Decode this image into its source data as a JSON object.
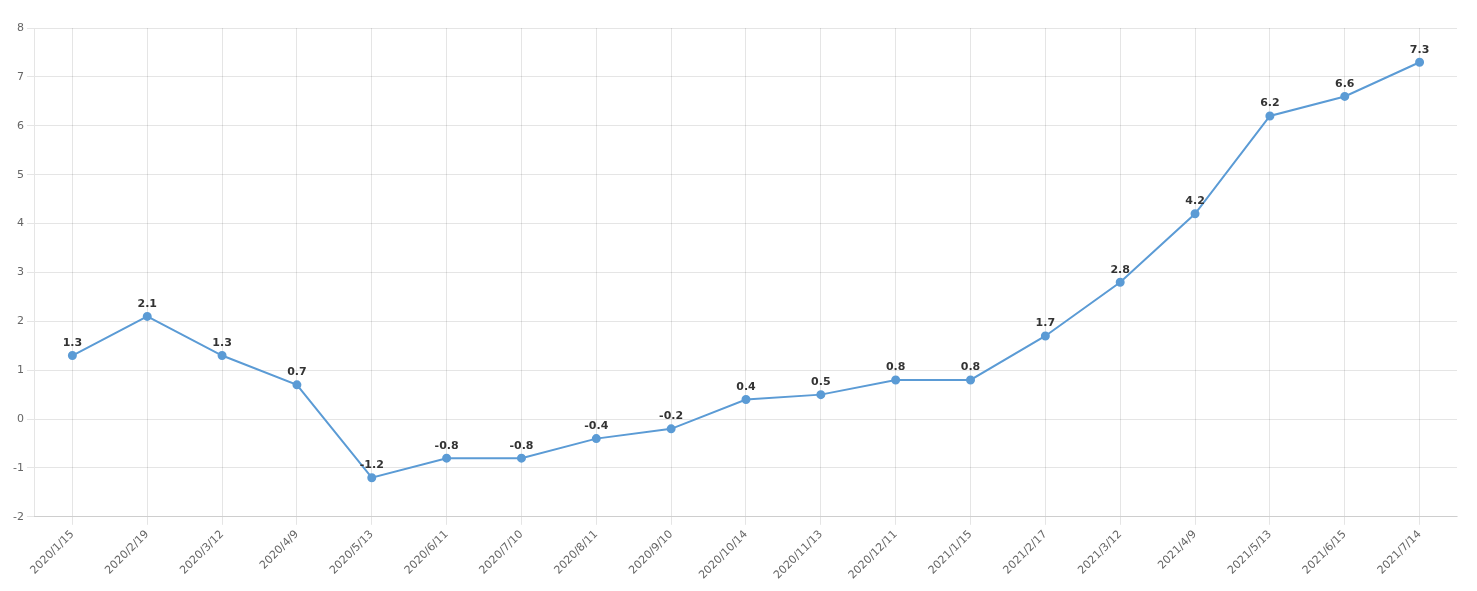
{
  "chart_data": {
    "type": "line",
    "categories": [
      "2020/1/15",
      "2020/2/19",
      "2020/3/12",
      "2020/4/9",
      "2020/5/13",
      "2020/6/11",
      "2020/7/10",
      "2020/8/11",
      "2020/9/10",
      "2020/10/14",
      "2020/11/13",
      "2020/12/11",
      "2021/1/15",
      "2021/2/17",
      "2021/3/12",
      "2021/4/9",
      "2021/5/13",
      "2021/6/15",
      "2021/7/14"
    ],
    "values": [
      1.3,
      2.1,
      1.3,
      0.7,
      -1.2,
      -0.8,
      -0.8,
      -0.4,
      -0.2,
      0.4,
      0.5,
      0.8,
      0.8,
      1.7,
      2.8,
      4.2,
      6.2,
      6.6,
      7.3
    ],
    "color": "#5B9BD5",
    "marker": "circle",
    "line_style": "solid",
    "ylim": [
      -2,
      8
    ],
    "yticks": [
      -2,
      -1,
      0,
      1,
      2,
      3,
      4,
      5,
      6,
      7,
      8
    ],
    "grid": true,
    "data_labels": true
  }
}
